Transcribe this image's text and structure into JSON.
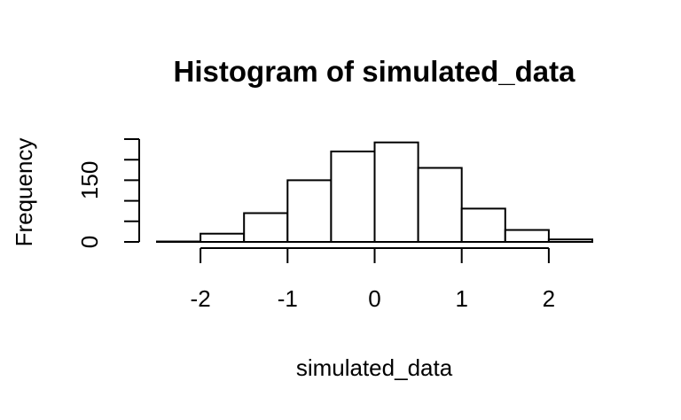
{
  "chart_data": {
    "type": "bar",
    "title": "Histogram of simulated_data",
    "xlabel": "simulated_data",
    "ylabel": "Frequency",
    "bins": [
      {
        "start": -2.5,
        "end": -2.0,
        "count": 1
      },
      {
        "start": -2.0,
        "end": -1.5,
        "count": 20
      },
      {
        "start": -1.5,
        "end": -1.0,
        "count": 70
      },
      {
        "start": -1.0,
        "end": -0.5,
        "count": 150
      },
      {
        "start": -0.5,
        "end": 0.0,
        "count": 220
      },
      {
        "start": 0.0,
        "end": 0.5,
        "count": 242
      },
      {
        "start": 0.5,
        "end": 1.0,
        "count": 180
      },
      {
        "start": 1.0,
        "end": 1.5,
        "count": 81
      },
      {
        "start": 1.5,
        "end": 2.0,
        "count": 29
      },
      {
        "start": 2.0,
        "end": 2.5,
        "count": 6
      }
    ],
    "xlim": [
      -2.5,
      2.5
    ],
    "ylim": [
      0,
      250
    ],
    "x_ticks": [
      -2,
      -1,
      0,
      1,
      2
    ],
    "x_tick_labels": [
      "-2",
      "-1",
      "0",
      "1",
      "2"
    ],
    "y_ticks": [
      0,
      50,
      100,
      150,
      200,
      250
    ],
    "y_tick_labels": [
      "0",
      "",
      "",
      "150",
      "",
      ""
    ],
    "grid": false,
    "legend": "none"
  }
}
